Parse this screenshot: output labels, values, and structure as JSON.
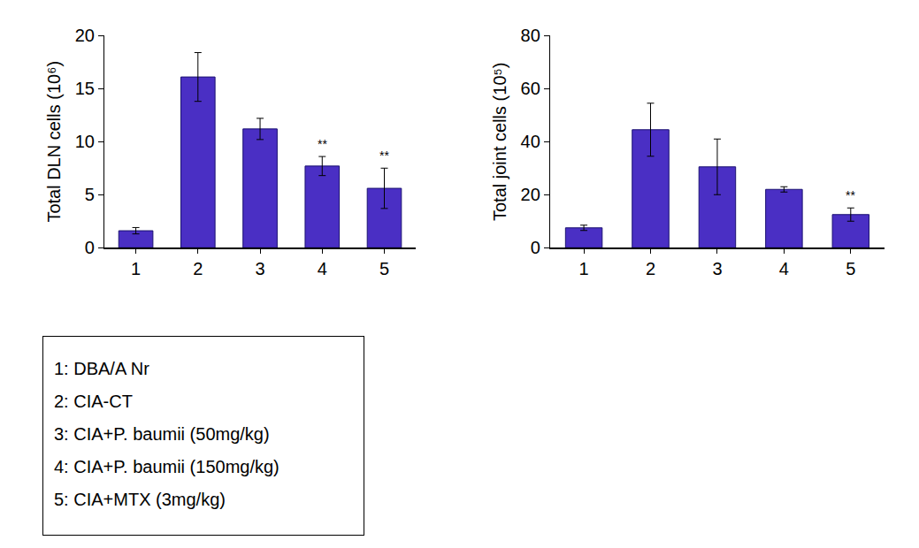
{
  "chart_data": [
    {
      "type": "bar",
      "categories": [
        "1",
        "2",
        "3",
        "4",
        "5"
      ],
      "values": [
        1.6,
        16.1,
        11.2,
        7.7,
        5.6
      ],
      "errors": [
        0.3,
        2.3,
        1.0,
        0.9,
        1.9
      ],
      "color": "#4a2fc4",
      "y_label": "Total DLN cells (10⁶)",
      "ylim": [
        0,
        20
      ],
      "yticks": [
        0,
        5,
        10,
        15,
        20
      ],
      "grid": false,
      "annotations": [
        {
          "category": "4",
          "text": "**"
        },
        {
          "category": "5",
          "text": "**"
        }
      ]
    },
    {
      "type": "bar",
      "categories": [
        "1",
        "2",
        "3",
        "4",
        "5"
      ],
      "values": [
        7.5,
        44.5,
        30.5,
        22,
        12.5
      ],
      "errors": [
        1,
        10,
        10.5,
        1,
        2.5
      ],
      "color": "#4a2fc4",
      "y_label": "Total joint cells (10⁵)",
      "ylim": [
        0,
        80
      ],
      "yticks": [
        0,
        20,
        40,
        60,
        80
      ],
      "grid": false,
      "annotations": [
        {
          "category": "5",
          "text": "**"
        }
      ]
    }
  ],
  "legend_box": {
    "lines": [
      "1: DBA/A Nr",
      "2: CIA-CT",
      "3: CIA+P. baumii (50mg/kg)",
      "4: CIA+P. baumii (150mg/kg)",
      "5: CIA+MTX (3mg/kg)"
    ]
  }
}
